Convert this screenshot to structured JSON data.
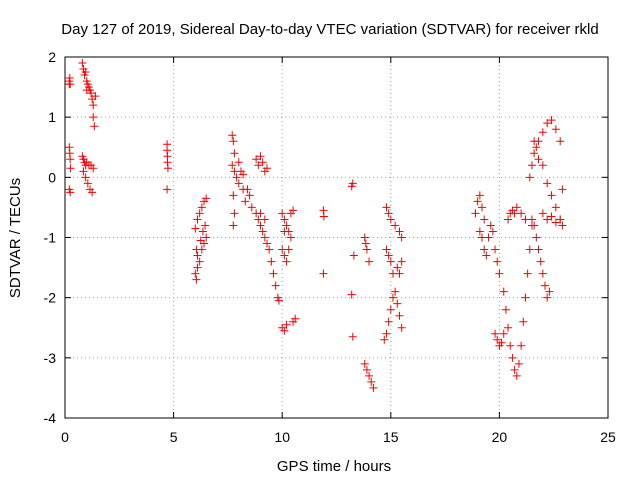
{
  "chart_data": {
    "type": "scatter",
    "title": "Day 127 of 2019, Sidereal Day-to-day VTEC variation (SDTVAR) for receiver rkld",
    "xlabel": "GPS time / hours",
    "ylabel": "SDTVAR / TECUs",
    "xlim": [
      0,
      25
    ],
    "ylim": [
      -4,
      2
    ],
    "x_ticks": [
      0,
      5,
      10,
      15,
      20,
      25
    ],
    "y_ticks": [
      -4,
      -3,
      -2,
      -1,
      0,
      1,
      2
    ],
    "x_tick_labels": [
      "0",
      "5",
      "10",
      "15",
      "20",
      "25"
    ],
    "y_tick_labels": [
      "-4",
      "-3",
      "-2",
      "-1",
      "0",
      "1",
      "2"
    ],
    "grid": true,
    "marker": "+",
    "colors": {
      "points": "#ff0000",
      "axes": "#000000",
      "grid": "#a0a0a0"
    },
    "series": [
      {
        "points": [
          [
            0.2,
            1.55
          ],
          [
            0.2,
            1.6
          ],
          [
            0.22,
            1.65
          ],
          [
            0.24,
            1.55
          ],
          [
            0.2,
            0.5
          ],
          [
            0.22,
            0.4
          ],
          [
            0.24,
            0.3
          ],
          [
            0.25,
            0.15
          ],
          [
            0.2,
            -0.2
          ],
          [
            0.24,
            -0.25
          ],
          [
            0.8,
            1.9
          ],
          [
            0.85,
            1.8
          ],
          [
            0.9,
            1.7
          ],
          [
            0.95,
            1.75
          ],
          [
            1.0,
            1.6
          ],
          [
            1.05,
            1.55
          ],
          [
            1.1,
            1.5
          ],
          [
            1.15,
            1.45
          ],
          [
            1.2,
            1.4
          ],
          [
            1.25,
            1.3
          ],
          [
            1.3,
            1.2
          ],
          [
            1.3,
            1.0
          ],
          [
            1.35,
            0.85
          ],
          [
            1.4,
            1.35
          ],
          [
            1.0,
            1.45
          ],
          [
            0.8,
            0.35
          ],
          [
            0.85,
            0.3
          ],
          [
            0.9,
            0.25
          ],
          [
            0.95,
            0.2
          ],
          [
            1.0,
            0.25
          ],
          [
            1.1,
            0.2
          ],
          [
            1.2,
            0.2
          ],
          [
            1.3,
            0.15
          ],
          [
            0.85,
            0.1
          ],
          [
            0.95,
            0.0
          ],
          [
            1.05,
            -0.1
          ],
          [
            1.15,
            -0.2
          ],
          [
            1.25,
            -0.25
          ],
          [
            4.7,
            0.55
          ],
          [
            4.7,
            0.45
          ],
          [
            4.72,
            0.35
          ],
          [
            4.72,
            0.25
          ],
          [
            4.74,
            0.15
          ],
          [
            4.7,
            -0.2
          ],
          [
            6.0,
            -0.85
          ],
          [
            6.1,
            -0.7
          ],
          [
            6.2,
            -0.6
          ],
          [
            6.3,
            -0.5
          ],
          [
            6.4,
            -0.4
          ],
          [
            6.5,
            -0.35
          ],
          [
            6.05,
            -1.2
          ],
          [
            6.1,
            -1.3
          ],
          [
            6.2,
            -1.4
          ],
          [
            6.3,
            -1.2
          ],
          [
            6.4,
            -1.1
          ],
          [
            6.5,
            -1.0
          ],
          [
            6.0,
            -1.6
          ],
          [
            6.05,
            -1.7
          ],
          [
            6.1,
            -1.5
          ],
          [
            6.25,
            -1.05
          ],
          [
            6.35,
            -0.9
          ],
          [
            6.45,
            -0.8
          ],
          [
            7.7,
            0.7
          ],
          [
            7.75,
            0.6
          ],
          [
            7.8,
            0.4
          ],
          [
            7.7,
            0.2
          ],
          [
            7.8,
            0.1
          ],
          [
            7.9,
            0.0
          ],
          [
            8.0,
            -0.1
          ],
          [
            8.1,
            0.1
          ],
          [
            8.2,
            -0.2
          ],
          [
            8.3,
            -0.4
          ],
          [
            7.75,
            -0.3
          ],
          [
            7.8,
            -0.6
          ],
          [
            7.75,
            -0.8
          ],
          [
            8.4,
            -0.2
          ],
          [
            8.5,
            -0.3
          ],
          [
            8.6,
            -0.5
          ],
          [
            8.0,
            0.25
          ],
          [
            8.2,
            0.05
          ],
          [
            8.8,
            0.3
          ],
          [
            8.9,
            0.2
          ],
          [
            9.0,
            0.35
          ],
          [
            9.1,
            0.25
          ],
          [
            9.2,
            0.1
          ],
          [
            9.3,
            0.15
          ],
          [
            8.8,
            -0.6
          ],
          [
            8.9,
            -0.7
          ],
          [
            9.0,
            -0.8
          ],
          [
            9.1,
            -0.9
          ],
          [
            9.2,
            -1.0
          ],
          [
            9.3,
            -1.1
          ],
          [
            9.4,
            -1.2
          ],
          [
            9.5,
            -1.4
          ],
          [
            9.6,
            -1.6
          ],
          [
            9.7,
            -1.8
          ],
          [
            9.8,
            -2.0
          ],
          [
            9.85,
            -2.05
          ],
          [
            9.0,
            -0.6
          ],
          [
            9.2,
            -0.7
          ],
          [
            10.0,
            -0.6
          ],
          [
            10.1,
            -0.7
          ],
          [
            10.2,
            -0.8
          ],
          [
            10.3,
            -0.9
          ],
          [
            10.4,
            -0.6
          ],
          [
            10.5,
            -0.55
          ],
          [
            10.0,
            -1.2
          ],
          [
            10.1,
            -1.3
          ],
          [
            10.2,
            -1.4
          ],
          [
            10.3,
            -1.2
          ],
          [
            10.0,
            -2.5
          ],
          [
            10.1,
            -2.55
          ],
          [
            10.2,
            -2.45
          ],
          [
            10.5,
            -2.4
          ],
          [
            10.6,
            -2.35
          ],
          [
            10.1,
            -0.9
          ],
          [
            10.4,
            -1.0
          ],
          [
            11.9,
            -0.55
          ],
          [
            11.92,
            -0.65
          ],
          [
            11.9,
            -1.6
          ],
          [
            13.2,
            -0.15
          ],
          [
            13.25,
            -0.1
          ],
          [
            13.3,
            -1.3
          ],
          [
            13.2,
            -1.95
          ],
          [
            13.25,
            -2.65
          ],
          [
            13.8,
            -1.0
          ],
          [
            13.85,
            -1.1
          ],
          [
            13.9,
            -1.2
          ],
          [
            14.0,
            -1.4
          ],
          [
            13.8,
            -3.1
          ],
          [
            13.9,
            -3.2
          ],
          [
            14.0,
            -3.3
          ],
          [
            14.1,
            -3.4
          ],
          [
            14.2,
            -3.5
          ],
          [
            14.8,
            -0.5
          ],
          [
            14.9,
            -0.6
          ],
          [
            15.0,
            -0.7
          ],
          [
            15.2,
            -0.8
          ],
          [
            15.4,
            -0.9
          ],
          [
            15.5,
            -1.0
          ],
          [
            14.8,
            -1.2
          ],
          [
            14.9,
            -1.3
          ],
          [
            15.0,
            -1.4
          ],
          [
            15.1,
            -1.6
          ],
          [
            14.7,
            -2.7
          ],
          [
            14.8,
            -2.6
          ],
          [
            14.9,
            -2.4
          ],
          [
            15.0,
            -2.2
          ],
          [
            15.1,
            -2.0
          ],
          [
            15.2,
            -1.9
          ],
          [
            15.3,
            -2.1
          ],
          [
            15.4,
            -2.3
          ],
          [
            15.5,
            -2.5
          ],
          [
            15.3,
            -1.5
          ],
          [
            15.4,
            -1.6
          ],
          [
            15.5,
            -1.4
          ],
          [
            18.9,
            -0.6
          ],
          [
            19.0,
            -0.4
          ],
          [
            19.1,
            -0.3
          ],
          [
            19.2,
            -0.5
          ],
          [
            19.3,
            -0.7
          ],
          [
            19.1,
            -0.9
          ],
          [
            19.2,
            -1.0
          ],
          [
            19.3,
            -1.2
          ],
          [
            19.4,
            -1.3
          ],
          [
            19.5,
            -1.0
          ],
          [
            19.6,
            -0.8
          ],
          [
            19.7,
            -0.9
          ],
          [
            19.8,
            -1.2
          ],
          [
            19.9,
            -1.4
          ],
          [
            20.0,
            -1.6
          ],
          [
            19.8,
            -2.6
          ],
          [
            19.9,
            -2.7
          ],
          [
            20.0,
            -2.8
          ],
          [
            20.1,
            -2.75
          ],
          [
            20.2,
            -2.6
          ],
          [
            20.2,
            -1.9
          ],
          [
            20.3,
            -2.2
          ],
          [
            20.4,
            -2.5
          ],
          [
            20.5,
            -2.8
          ],
          [
            20.6,
            -3.0
          ],
          [
            20.7,
            -3.2
          ],
          [
            20.8,
            -3.3
          ],
          [
            20.9,
            -3.1
          ],
          [
            21.0,
            -2.8
          ],
          [
            21.1,
            -2.4
          ],
          [
            21.2,
            -2.0
          ],
          [
            21.3,
            -1.6
          ],
          [
            21.4,
            -1.2
          ],
          [
            21.5,
            -0.8
          ],
          [
            20.4,
            -0.7
          ],
          [
            20.5,
            -0.6
          ],
          [
            20.6,
            -0.55
          ],
          [
            20.7,
            -0.6
          ],
          [
            20.8,
            -0.5
          ],
          [
            21.0,
            -0.6
          ],
          [
            21.2,
            -0.7
          ],
          [
            21.4,
            0.0
          ],
          [
            21.5,
            0.2
          ],
          [
            21.6,
            0.4
          ],
          [
            21.8,
            0.6
          ],
          [
            22.0,
            0.75
          ],
          [
            22.2,
            0.9
          ],
          [
            22.4,
            0.95
          ],
          [
            22.6,
            0.8
          ],
          [
            22.8,
            0.6
          ],
          [
            21.5,
            -0.7
          ],
          [
            21.6,
            -0.8
          ],
          [
            21.7,
            -1.0
          ],
          [
            21.8,
            -1.2
          ],
          [
            21.9,
            -1.4
          ],
          [
            22.0,
            -1.6
          ],
          [
            22.1,
            -1.8
          ],
          [
            22.2,
            -2.0
          ],
          [
            22.3,
            -1.9
          ],
          [
            21.6,
            0.6
          ],
          [
            21.7,
            0.5
          ],
          [
            21.8,
            0.3
          ],
          [
            22.0,
            0.2
          ],
          [
            22.2,
            -0.1
          ],
          [
            22.4,
            -0.3
          ],
          [
            22.6,
            -0.5
          ],
          [
            22.8,
            -0.7
          ],
          [
            22.9,
            -0.8
          ],
          [
            22.0,
            -0.6
          ],
          [
            22.2,
            -0.7
          ],
          [
            22.4,
            -0.65
          ],
          [
            22.6,
            -0.75
          ],
          [
            22.8,
            -0.7
          ],
          [
            22.9,
            -0.2
          ]
        ]
      }
    ]
  }
}
